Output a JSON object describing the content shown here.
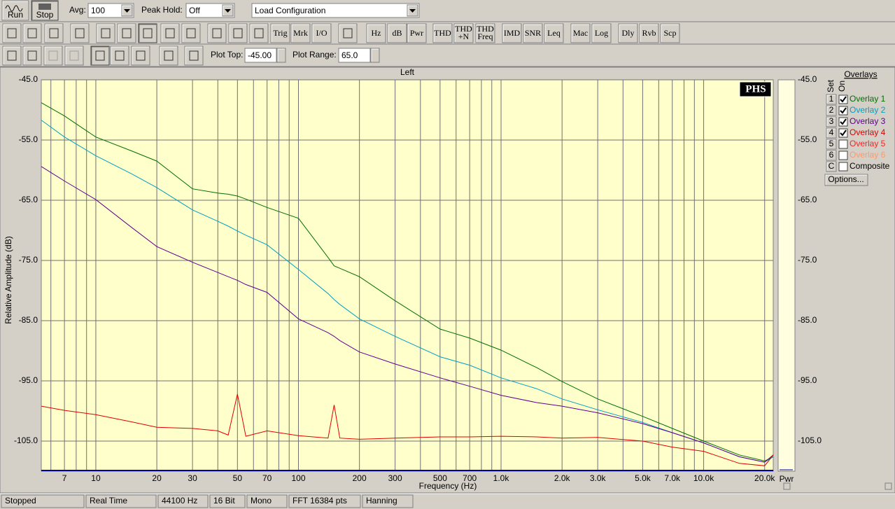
{
  "toolbar": {
    "run": "Run",
    "stop": "Stop",
    "avg_label": "Avg:",
    "avg_value": "100",
    "peak_label": "Peak Hold:",
    "peak_value": "Off",
    "config": "Load Configuration",
    "buttons": [
      [
        "Trig"
      ],
      [
        "Mrk"
      ],
      [
        "I/O"
      ],
      [
        "Hz"
      ],
      [
        "dB"
      ],
      [
        "Pwr"
      ],
      [
        "THD"
      ],
      [
        "THD",
        "+N"
      ],
      [
        "THD",
        "Freq"
      ],
      [
        "IMD"
      ],
      [
        "SNR"
      ],
      [
        "Leq"
      ],
      [
        "Mac"
      ],
      [
        "Log"
      ],
      [
        "Dly"
      ],
      [
        "Rvb"
      ],
      [
        "Scp"
      ]
    ],
    "plot_top_label": "Plot Top:",
    "plot_top": "-45.00",
    "plot_range_label": "Plot Range:",
    "plot_range": "65.0"
  },
  "chart_data": {
    "type": "line",
    "title": "Left",
    "x_label": "Frequency (Hz)",
    "y_label": "Relative Amplitude (dB)",
    "y2_label": "Pwr",
    "logo": "PHS",
    "x_log": true,
    "grid": true,
    "xlim": [
      5.38,
      22050
    ],
    "ylim": [
      -110,
      -45
    ],
    "xticks": [
      7,
      10,
      20,
      30,
      50,
      70,
      100,
      200,
      300,
      500,
      700,
      {
        "value": 1000,
        "label": "1.0k"
      },
      {
        "value": 2000,
        "label": "2.0k"
      },
      {
        "value": 3000,
        "label": "3.0k"
      },
      {
        "value": 5000,
        "label": "5.0k"
      },
      {
        "value": 7000,
        "label": "7.0k"
      },
      {
        "value": 10000,
        "label": "10.0k"
      },
      {
        "value": 20000,
        "label": "20.0k"
      }
    ],
    "xminor": [
      6,
      8,
      9,
      40,
      60,
      80,
      90,
      400,
      600,
      800,
      900,
      4000,
      6000,
      8000,
      9000
    ],
    "yticks": [
      {
        "value": -45,
        "label": "-45.0"
      },
      {
        "value": -55,
        "label": "-55.0"
      },
      {
        "value": -65,
        "label": "-65.0"
      },
      {
        "value": -75,
        "label": "-75.0"
      },
      {
        "value": -85,
        "label": "-85.0"
      },
      {
        "value": -95,
        "label": "-95.0"
      },
      {
        "value": -105,
        "label": "-105.0"
      }
    ],
    "x": [
      5.38,
      7,
      10,
      15,
      20,
      30,
      40,
      45,
      50,
      55,
      70,
      100,
      140,
      150,
      160,
      200,
      300,
      500,
      700,
      1000,
      1500,
      2000,
      3000,
      5000,
      7000,
      10000,
      15000,
      20000,
      22050
    ],
    "series": [
      {
        "name": "Overlay 1",
        "color": "#007000",
        "values": [
          -48.8,
          -51.0,
          -54.5,
          -56.8,
          -58.5,
          -63.1,
          -63.8,
          -64.0,
          -64.3,
          -64.8,
          -66.2,
          -68.0,
          -74.5,
          -75.9,
          -76.3,
          -77.7,
          -81.7,
          -86.4,
          -87.9,
          -89.9,
          -92.8,
          -95.1,
          -98.0,
          -100.9,
          -102.9,
          -105.0,
          -107.3,
          -108.3,
          -107.6
        ]
      },
      {
        "name": "Overlay 2",
        "color": "#00a0c0",
        "values": [
          -51.7,
          -54.5,
          -57.6,
          -60.6,
          -62.9,
          -66.6,
          -68.5,
          -69.3,
          -70.1,
          -70.8,
          -72.4,
          -76.5,
          -80.5,
          -81.5,
          -82.3,
          -84.7,
          -87.6,
          -91.0,
          -92.4,
          -94.5,
          -96.3,
          -98.0,
          -99.8,
          -101.9,
          -103.6,
          -105.3,
          -107.6,
          -108.5,
          -107.6
        ]
      },
      {
        "name": "Overlay 3",
        "color": "#600090",
        "values": [
          -59.4,
          -61.8,
          -64.9,
          -69.5,
          -72.7,
          -75.3,
          -77.0,
          -77.7,
          -78.3,
          -79.0,
          -80.3,
          -84.7,
          -87.0,
          -87.6,
          -88.3,
          -90.2,
          -92.2,
          -94.5,
          -95.9,
          -97.4,
          -98.6,
          -99.2,
          -100.3,
          -102.1,
          -103.6,
          -105.3,
          -107.6,
          -108.5,
          -107.3
        ]
      },
      {
        "name": "Overlay 4",
        "color": "#e00000",
        "values": [
          -99.2,
          -99.9,
          -100.6,
          -101.8,
          -102.7,
          -102.9,
          -103.3,
          -104.0,
          -97.2,
          -104.2,
          -103.3,
          -104.1,
          -104.5,
          -99.0,
          -104.5,
          -104.7,
          -104.5,
          -104.3,
          -104.3,
          -104.2,
          -104.3,
          -104.5,
          -104.4,
          -105.0,
          -106.0,
          -106.7,
          -108.7,
          -109.1,
          -107.3
        ]
      }
    ]
  },
  "overlays": {
    "title": "Overlays",
    "set_header": "Set",
    "on_header": "On",
    "sets": [
      "1",
      "2",
      "3",
      "4"
    ],
    "on": [
      true,
      true,
      true,
      true
    ],
    "extra": [
      {
        "set": "5",
        "name": "Overlay 5",
        "color": "#ff2020",
        "on": false
      },
      {
        "set": "6",
        "name": "Overlay 6",
        "color": "#ff9966",
        "on": false
      },
      {
        "set": "C",
        "name": "Composite",
        "color": "#000000",
        "on": false
      }
    ],
    "options": "Options..."
  },
  "status": [
    "Stopped",
    "Real Time",
    "44100 Hz",
    "16 Bit",
    "Mono",
    "FFT 16384 pts",
    "Hanning"
  ]
}
